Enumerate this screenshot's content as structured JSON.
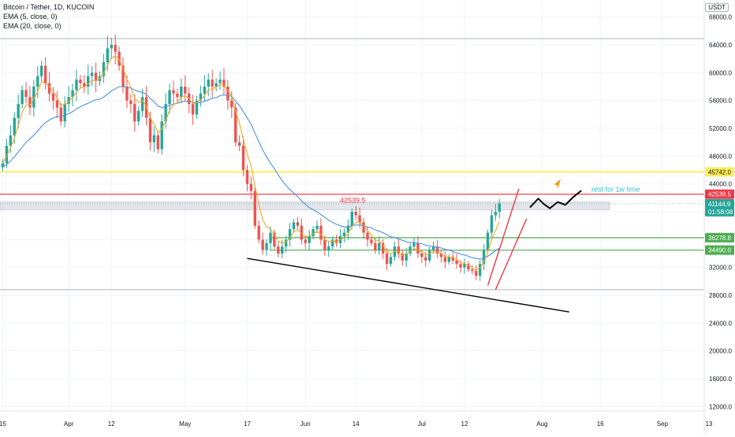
{
  "legend": {
    "symbol": "Bitcoin / Tether, 1D, KUCOIN",
    "ema5": "EMA (5, close, 0)",
    "ema20": "EMA (20, close, 0)"
  },
  "currency_button": "USDT",
  "colors": {
    "up": "#26a69a",
    "down": "#ef5350",
    "ema5": "#f5a623",
    "ema20": "#4a90e2",
    "red_level": "#f23645",
    "yellow_level": "#ffee58",
    "green_level": "#4caf50",
    "trendline": "#000000",
    "annotation": "#26c6da",
    "arrow": "#ff9800"
  },
  "chart_data": {
    "type": "candlestick",
    "ylim": [
      10000,
      68000
    ],
    "y_ticks": [
      "12000.0",
      "16000.0",
      "20000.0",
      "24000.0",
      "28000.0",
      "32000.0",
      "36000.0",
      "40000.0",
      "44000.0",
      "48000.0",
      "52000.0",
      "56000.0",
      "60000.0",
      "64000.0",
      "68000.0"
    ],
    "x_ticks": [
      {
        "label": "15",
        "day": 0
      },
      {
        "label": "Apr",
        "day": 17
      },
      {
        "label": "12",
        "day": 28
      },
      {
        "label": "May",
        "day": 47
      },
      {
        "label": "17",
        "day": 63
      },
      {
        "label": "Jun",
        "day": 78
      },
      {
        "label": "14",
        "day": 91
      },
      {
        "label": "Jul",
        "day": 108
      },
      {
        "label": "12",
        "day": 119
      },
      {
        "label": "Aug",
        "day": 139
      },
      {
        "label": "16",
        "day": 154
      },
      {
        "label": "Sep",
        "day": 170
      },
      {
        "label": "13",
        "day": 182
      }
    ],
    "closes": [
      47000,
      49500,
      51000,
      53500,
      55500,
      57500,
      56500,
      55000,
      58000,
      59500,
      61000,
      58500,
      57000,
      56000,
      55000,
      53000,
      55500,
      56500,
      57500,
      59000,
      58500,
      58000,
      59500,
      60000,
      58800,
      59500,
      61500,
      63500,
      64000,
      63000,
      61000,
      58000,
      56000,
      55500,
      53000,
      54500,
      56500,
      53500,
      50000,
      51000,
      49000,
      53000,
      55500,
      57500,
      57000,
      56500,
      58000,
      57000,
      55500,
      54000,
      56000,
      57000,
      58000,
      59000,
      58000,
      58500,
      59000,
      58000,
      56000,
      55000,
      50000,
      49500,
      46000,
      44000,
      43000,
      38000,
      36000,
      34500,
      35500,
      37000,
      35000,
      34000,
      35000,
      36000,
      37500,
      38500,
      38000,
      36000,
      35500,
      36500,
      37500,
      38000,
      36000,
      34500,
      35000,
      36000,
      35500,
      36500,
      37000,
      38000,
      40000,
      39500,
      38500,
      37000,
      36000,
      35500,
      34500,
      35500,
      34000,
      32500,
      33500,
      35000,
      34000,
      33000,
      34000,
      35000,
      35500,
      34000,
      33500,
      33000,
      34500,
      35000,
      34000,
      33500,
      32800,
      33500,
      33000,
      32500,
      32000,
      32500,
      31700,
      31500,
      30800,
      32500,
      34500,
      37000,
      39500,
      40000,
      41200
    ],
    "ema5": [
      47000,
      48000,
      49200,
      50600,
      52400,
      54300,
      55400,
      55300,
      56200,
      57300,
      58700,
      58500,
      58000,
      57300,
      56400,
      55300,
      55500,
      55800,
      56500,
      57200,
      57800,
      57900,
      58400,
      58900,
      58900,
      59100,
      59900,
      61100,
      62100,
      62400,
      61900,
      60600,
      59100,
      57900,
      56300,
      55700,
      56000,
      55200,
      53500,
      52600,
      51400,
      51900,
      53100,
      54600,
      55400,
      55700,
      56500,
      56700,
      56300,
      55500,
      55700,
      56100,
      56700,
      57500,
      57700,
      57900,
      58300,
      58200,
      57400,
      56600,
      54400,
      52800,
      50500,
      48300,
      46600,
      43700,
      41100,
      38900,
      37800,
      37500,
      36700,
      35800,
      35500,
      35700,
      36300,
      37100,
      37400,
      36900,
      36400,
      36500,
      36800,
      37200,
      36800,
      36000,
      35700,
      35800,
      35700,
      36000,
      36300,
      36900,
      37900,
      38500,
      38500,
      38000,
      37300,
      36700,
      35900,
      35800,
      35200,
      34300,
      34000,
      34300,
      34200,
      33800,
      33900,
      34300,
      34700,
      34500,
      34200,
      33800,
      34000,
      34300,
      34200,
      34000,
      33600,
      33500,
      33400,
      33100,
      32700,
      32600,
      32300,
      32000,
      31600,
      31900,
      32800,
      34200,
      36000,
      37300,
      38600
    ],
    "ema20": [
      46500,
      46800,
      47300,
      47900,
      48600,
      49300,
      50000,
      50500,
      51000,
      51600,
      52300,
      52800,
      53200,
      53500,
      53700,
      53700,
      53900,
      54100,
      54400,
      54800,
      55100,
      55400,
      55600,
      55900,
      56100,
      56200,
      56500,
      56900,
      57400,
      57700,
      58000,
      58000,
      57900,
      57800,
      57500,
      57300,
      57200,
      56900,
      56300,
      55800,
      55200,
      55000,
      55100,
      55300,
      55500,
      55600,
      55800,
      55900,
      55900,
      55700,
      55700,
      55700,
      55900,
      56100,
      56300,
      56400,
      56700,
      56800,
      56700,
      56600,
      55900,
      55300,
      54400,
      53500,
      52600,
      51300,
      50100,
      48900,
      47900,
      47000,
      46200,
      45300,
      44500,
      43800,
      43200,
      42700,
      42200,
      41600,
      41100,
      40600,
      40300,
      40000,
      39600,
      39200,
      38800,
      38500,
      38200,
      38000,
      37800,
      37800,
      38000,
      38100,
      38100,
      38000,
      37800,
      37700,
      37400,
      37200,
      37000,
      36700,
      36400,
      36300,
      36100,
      35900,
      35700,
      35600,
      35600,
      35500,
      35400,
      35200,
      35100,
      35000,
      34900,
      34800,
      34600,
      34500,
      34300,
      34100,
      33900,
      33800,
      33600,
      33400,
      33300,
      33200,
      33300,
      33600,
      34000,
      34400,
      34800
    ],
    "horizontal_levels": [
      {
        "price": 45742.0,
        "label": "45742.0",
        "color": "yellow"
      },
      {
        "price": 42539.5,
        "label": "42539.5",
        "color": "red"
      },
      {
        "price": 36278.8,
        "label": "36278.8",
        "color": "green"
      },
      {
        "price": 34490.0,
        "label": "34490.0",
        "color": "green"
      }
    ],
    "top_line_price": 64900,
    "bottom_line_price": 28800,
    "resistance_zone": [
      40300,
      41400
    ],
    "last_price": {
      "value": "41144.9",
      "timer": "01:58:08"
    },
    "chart_label": "42539.5",
    "annotation": "rest for 1w time",
    "trendline": {
      "start": {
        "day": 63,
        "price": 33300
      },
      "end": {
        "day": 146,
        "price": 25600
      }
    },
    "channel_lines": [
      {
        "start": {
          "day": 125,
          "price": 29400
        },
        "end": {
          "day": 133,
          "price": 43300
        }
      },
      {
        "start": {
          "day": 127,
          "price": 28800
        },
        "end": {
          "day": 135,
          "price": 39000
        }
      }
    ],
    "projection_path": [
      [
        136,
        40700
      ],
      [
        138,
        41900
      ],
      [
        139.5,
        41100
      ],
      [
        141,
        40500
      ],
      [
        143,
        41400
      ],
      [
        145,
        41000
      ],
      [
        147,
        42100
      ],
      [
        149,
        43000
      ]
    ],
    "arrow_at": {
      "day": 143,
      "price": 44000
    }
  }
}
